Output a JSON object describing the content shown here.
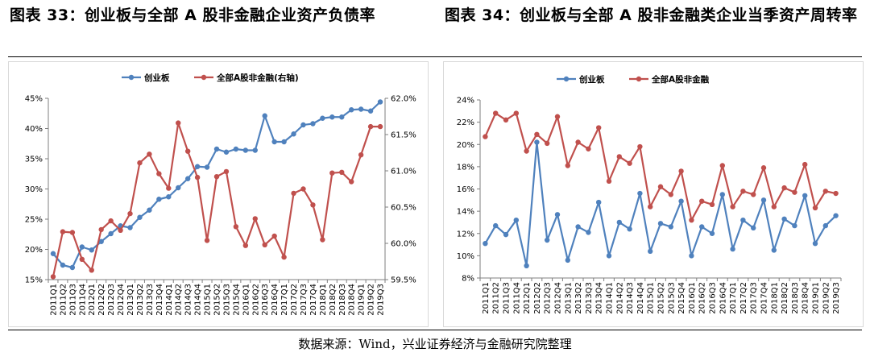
{
  "titles": {
    "left": "图表 33：创业板与全部 A 股非金融企业资产负债率",
    "right": "图表 34：创业板与全部 A 股非金融类企业当季资产周转率"
  },
  "source": "数据来源：Wind，兴业证券经济与金融研究院整理",
  "colors": {
    "blue": "#4f81bd",
    "red": "#c0504d"
  },
  "chart_data": [
    {
      "type": "line",
      "title": "",
      "xlabel": "",
      "ylabel": "",
      "categories": [
        "2011Q1",
        "2011Q2",
        "2011Q3",
        "2011Q4",
        "2012Q1",
        "2012Q2",
        "2012Q3",
        "2012Q4",
        "2013Q1",
        "2013Q2",
        "2013Q3",
        "2013Q4",
        "2014Q1",
        "2014Q2",
        "2014Q3",
        "2014Q4",
        "2015Q1",
        "2015Q2",
        "2015Q3",
        "2015Q4",
        "2016Q1",
        "2016Q2",
        "2016Q3",
        "2016Q4",
        "2017Q1",
        "2017Q2",
        "2017Q3",
        "2017Q4",
        "2018Q1",
        "2018Q2",
        "2018Q3",
        "2018Q4",
        "2019Q1",
        "2019Q2",
        "2019Q3"
      ],
      "y_left": {
        "min": 15,
        "max": 45,
        "step": 5,
        "format": "percent0",
        "ticks": [
          "45%",
          "40%",
          "35%",
          "30%",
          "25%",
          "20%",
          "15%"
        ]
      },
      "y_right": {
        "min": 59.5,
        "max": 62.0,
        "step": 0.5,
        "format": "percent1",
        "ticks": [
          "62.0%",
          "61.5%",
          "61.0%",
          "60.5%",
          "60.0%",
          "59.5%"
        ]
      },
      "legend_position": "top-center",
      "grid": false,
      "series": [
        {
          "name": "创业板",
          "axis": "left",
          "color": "#4f81bd",
          "values": [
            19.3,
            17.4,
            17.0,
            20.4,
            19.9,
            21.3,
            22.6,
            23.9,
            23.6,
            25.3,
            26.5,
            28.3,
            28.7,
            30.2,
            31.7,
            33.7,
            33.6,
            36.6,
            36.1,
            36.6,
            36.4,
            36.4,
            42.1,
            37.8,
            37.8,
            39.1,
            40.6,
            40.8,
            41.7,
            41.9,
            41.9,
            43.1,
            43.2,
            42.9,
            44.4
          ]
        },
        {
          "name": "全部A股非金融(右轴)",
          "axis": "right",
          "color": "#c0504d",
          "values": [
            59.54,
            60.16,
            60.15,
            59.78,
            59.63,
            60.19,
            60.31,
            60.18,
            60.41,
            61.11,
            61.23,
            60.96,
            60.76,
            61.66,
            61.27,
            60.91,
            60.04,
            60.92,
            60.99,
            60.23,
            59.97,
            60.34,
            59.98,
            60.1,
            59.81,
            60.69,
            60.75,
            60.53,
            60.05,
            60.97,
            60.98,
            60.85,
            61.22,
            61.61,
            61.61
          ]
        }
      ]
    },
    {
      "type": "line",
      "title": "",
      "xlabel": "",
      "ylabel": "",
      "categories": [
        "2011Q1",
        "2011Q2",
        "2011Q3",
        "2011Q4",
        "2012Q1",
        "2012Q2",
        "2012Q3",
        "2012Q4",
        "2013Q1",
        "2013Q2",
        "2013Q3",
        "2013Q4",
        "2014Q1",
        "2014Q2",
        "2014Q3",
        "2014Q4",
        "2015Q1",
        "2015Q2",
        "2015Q3",
        "2015Q4",
        "2016Q1",
        "2016Q2",
        "2016Q3",
        "2016Q4",
        "2017Q1",
        "2017Q2",
        "2017Q3",
        "2017Q4",
        "2018Q1",
        "2018Q2",
        "2018Q3",
        "2018Q4",
        "2019Q1",
        "2019Q2",
        "2019Q3"
      ],
      "y_left": {
        "min": 8,
        "max": 24,
        "step": 2,
        "format": "percent0",
        "ticks": [
          "24%",
          "22%",
          "20%",
          "18%",
          "16%",
          "14%",
          "12%",
          "10%",
          "8%"
        ]
      },
      "legend_position": "top-center",
      "grid": false,
      "series": [
        {
          "name": "创业板",
          "axis": "left",
          "color": "#4f81bd",
          "values": [
            11.1,
            12.7,
            11.9,
            13.2,
            9.1,
            20.2,
            11.4,
            13.7,
            9.6,
            12.6,
            12.1,
            14.8,
            10.0,
            13.0,
            12.4,
            15.6,
            10.4,
            12.9,
            12.6,
            14.9,
            10.0,
            12.6,
            12.0,
            15.5,
            10.6,
            13.2,
            12.5,
            15.0,
            10.5,
            13.3,
            12.7,
            15.4,
            11.1,
            12.7,
            13.6
          ]
        },
        {
          "name": "全部A股非金融",
          "axis": "left",
          "color": "#c0504d",
          "values": [
            20.7,
            22.8,
            22.2,
            22.8,
            19.4,
            20.9,
            20.1,
            22.5,
            18.1,
            20.2,
            19.6,
            21.5,
            16.7,
            18.9,
            18.3,
            19.8,
            14.4,
            16.2,
            15.5,
            17.6,
            13.2,
            14.9,
            14.6,
            18.1,
            14.4,
            15.8,
            15.5,
            17.9,
            14.4,
            16.1,
            15.7,
            18.2,
            14.3,
            15.8,
            15.6
          ]
        }
      ]
    }
  ]
}
